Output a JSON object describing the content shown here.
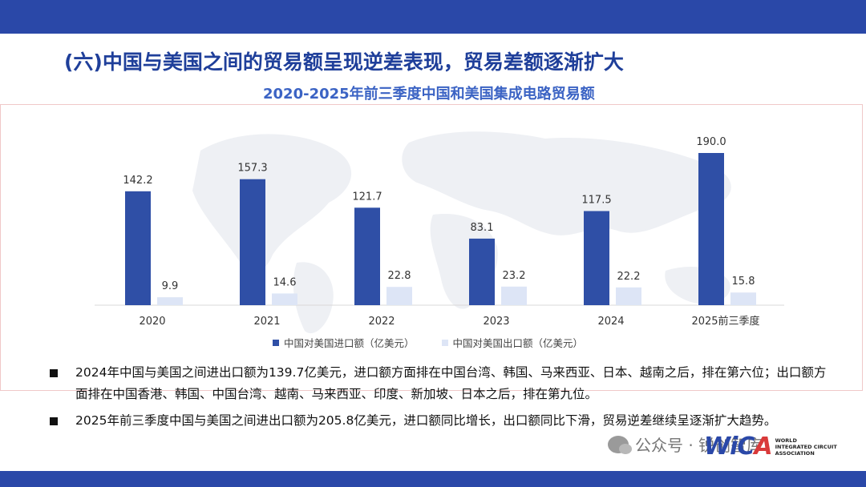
{
  "slide_title": "(六)中国与美国之间的贸易额呈现逆差表现，贸易差额逐渐扩大",
  "chart_data": {
    "type": "bar",
    "title": "2020-2025年前三季度中国和美国集成电路贸易额",
    "categories": [
      "2020",
      "2021",
      "2022",
      "2023",
      "2024",
      "2025前三季度"
    ],
    "series": [
      {
        "name": "中国对美国进口额（亿美元）",
        "color": "#2f4fa6",
        "values": [
          142.2,
          157.3,
          121.7,
          83.1,
          117.5,
          190.0
        ]
      },
      {
        "name": "中国对美国出口额（亿美元）",
        "color": "#dde5f6",
        "values": [
          9.9,
          14.6,
          22.8,
          23.2,
          22.2,
          15.8
        ]
      }
    ],
    "value_labels": [
      [
        "142.2",
        "157.3",
        "121.7",
        "83.1",
        "117.5",
        "190.0"
      ],
      [
        "9.9",
        "14.6",
        "22.8",
        "23.2",
        "22.2",
        "15.8"
      ]
    ],
    "ylim": [
      0,
      200
    ],
    "grid": false,
    "legend_position": "bottom"
  },
  "bullets": [
    "2024年中国与美国之间进出口额为139.7亿美元，进口额方面排在中国台湾、韩国、马来西亚、日本、越南之后，排在第六位；出口额方面排在中国香港、韩国、中国台湾、越南、马来西亚、印度、新加坡、日本之后，排在第九位。",
    "2025年前三季度中国与美国之间进出口额为205.8亿美元，进口额同比增长，出口额同比下滑，贸易逆差继续呈逐渐扩大趋势。"
  ],
  "watermark": {
    "text": "公众号 · 锐创智库",
    "icon": "wechat-icon"
  },
  "logo": {
    "word_main": "WiC",
    "word_accent": "A",
    "subtitle": [
      "WORLD",
      "INTEGRATED CIRCUIT",
      "ASSOCIATION"
    ]
  }
}
